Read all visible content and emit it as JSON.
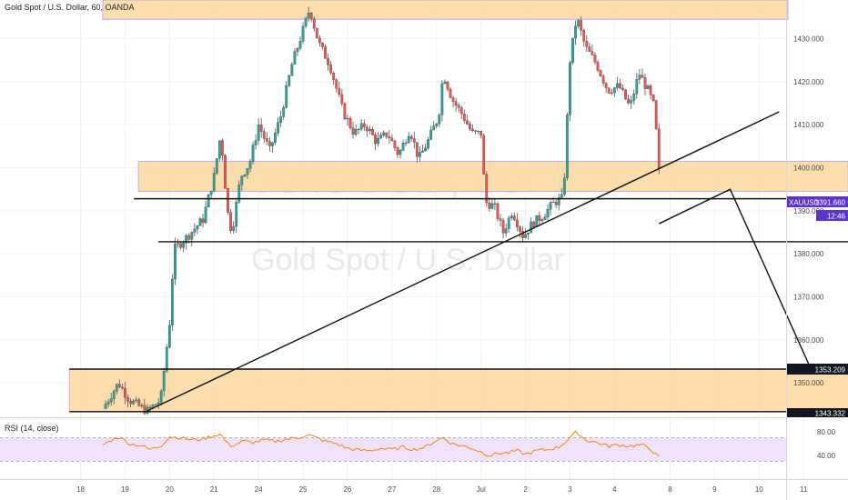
{
  "header": {
    "title": "Gold Spot / U.S. Dollar, 60, OANDA"
  },
  "watermark": {
    "symbol": "XAUUSD, 60",
    "name": "Gold Spot / U.S. Dollar"
  },
  "rsi": {
    "label": "RSI (14, close)",
    "ticks": [
      "80.00",
      "40.00"
    ],
    "upper": 70,
    "lower": 30
  },
  "price_labels": {
    "last": {
      "symbol": "XAUUSD",
      "value": "1391.660",
      "time": "12:46"
    },
    "support": "1353.209",
    "bottom": "1343.332"
  },
  "chart_data": {
    "type": "candlestick",
    "ylim": [
      1342,
      1439
    ],
    "yticks": [
      "1430.000",
      "1420.000",
      "1410.000",
      "1400.000",
      "1390.000",
      "1380.000",
      "1370.000",
      "1360.000",
      "1350.000"
    ],
    "yticks_values": [
      1430,
      1420,
      1410,
      1400,
      1390,
      1380,
      1370,
      1360,
      1350
    ],
    "xticks": [
      "18",
      "19",
      "20",
      "21",
      "24",
      "25",
      "26",
      "27",
      "28",
      "Jul",
      "2",
      "3",
      "4",
      "8",
      "9",
      "10",
      "11"
    ],
    "xticks_index": [
      -1,
      1,
      3,
      5,
      7,
      9,
      11,
      13,
      15,
      17,
      19,
      21,
      23,
      25.5,
      27.5,
      29.5,
      31.5
    ],
    "price_path": [
      [
        0,
        1344
      ],
      [
        0.7,
        1350
      ],
      [
        1.2,
        1346
      ],
      [
        1.8,
        1344
      ],
      [
        2.0,
        1343.5
      ],
      [
        2.6,
        1346
      ],
      [
        3.0,
        1364
      ],
      [
        3.2,
        1381
      ],
      [
        3.8,
        1384
      ],
      [
        4.5,
        1388
      ],
      [
        5.0,
        1398
      ],
      [
        5.3,
        1408
      ],
      [
        5.6,
        1390
      ],
      [
        5.8,
        1385
      ],
      [
        6.2,
        1398
      ],
      [
        6.6,
        1401
      ],
      [
        7.0,
        1410
      ],
      [
        7.5,
        1404
      ],
      [
        8.0,
        1412
      ],
      [
        8.5,
        1424
      ],
      [
        9.0,
        1432
      ],
      [
        9.3,
        1437
      ],
      [
        9.7,
        1429
      ],
      [
        10.2,
        1424
      ],
      [
        10.8,
        1413
      ],
      [
        11.3,
        1408
      ],
      [
        11.8,
        1410
      ],
      [
        12.3,
        1406
      ],
      [
        12.8,
        1408
      ],
      [
        13.3,
        1403
      ],
      [
        13.8,
        1409
      ],
      [
        14.2,
        1402
      ],
      [
        14.6,
        1406
      ],
      [
        15.1,
        1412
      ],
      [
        15.3,
        1422
      ],
      [
        15.7,
        1416
      ],
      [
        16.2,
        1412
      ],
      [
        16.6,
        1408
      ],
      [
        17.0,
        1408
      ],
      [
        17.2,
        1392
      ],
      [
        17.6,
        1391
      ],
      [
        18.0,
        1385
      ],
      [
        18.4,
        1390
      ],
      [
        18.9,
        1384
      ],
      [
        19.3,
        1387
      ],
      [
        19.8,
        1389
      ],
      [
        20.3,
        1392
      ],
      [
        20.7,
        1393
      ],
      [
        21.0,
        1425
      ],
      [
        21.3,
        1435
      ],
      [
        21.7,
        1428
      ],
      [
        22.2,
        1424
      ],
      [
        22.7,
        1418
      ],
      [
        23.2,
        1419
      ],
      [
        23.7,
        1414
      ],
      [
        24.1,
        1422
      ],
      [
        24.5,
        1418
      ],
      [
        24.8,
        1414
      ],
      [
        25.0,
        1399
      ],
      [
        25.1,
        1388
      ]
    ],
    "rsi_path": [
      [
        0,
        58
      ],
      [
        0.7,
        72
      ],
      [
        1.2,
        60
      ],
      [
        1.8,
        56
      ],
      [
        2.1,
        50
      ],
      [
        2.6,
        56
      ],
      [
        3.0,
        72
      ],
      [
        3.5,
        70
      ],
      [
        4.0,
        66
      ],
      [
        4.5,
        68
      ],
      [
        5.0,
        74
      ],
      [
        5.3,
        76
      ],
      [
        5.6,
        60
      ],
      [
        5.8,
        56
      ],
      [
        6.3,
        64
      ],
      [
        6.8,
        62
      ],
      [
        7.2,
        66
      ],
      [
        7.8,
        64
      ],
      [
        8.3,
        68
      ],
      [
        8.8,
        70
      ],
      [
        9.2,
        75
      ],
      [
        9.6,
        70
      ],
      [
        10.0,
        64
      ],
      [
        10.5,
        60
      ],
      [
        11.0,
        52
      ],
      [
        11.5,
        49
      ],
      [
        12.0,
        48
      ],
      [
        12.5,
        52
      ],
      [
        13.0,
        50
      ],
      [
        13.5,
        54
      ],
      [
        14.0,
        50
      ],
      [
        14.5,
        54
      ],
      [
        15.0,
        66
      ],
      [
        15.3,
        70
      ],
      [
        15.7,
        60
      ],
      [
        16.2,
        56
      ],
      [
        16.6,
        52
      ],
      [
        17.0,
        46
      ],
      [
        17.4,
        40
      ],
      [
        17.8,
        44
      ],
      [
        18.2,
        44
      ],
      [
        18.6,
        48
      ],
      [
        19.0,
        42
      ],
      [
        19.5,
        48
      ],
      [
        20.0,
        50
      ],
      [
        20.5,
        54
      ],
      [
        21.0,
        70
      ],
      [
        21.3,
        80
      ],
      [
        21.7,
        66
      ],
      [
        22.2,
        62
      ],
      [
        22.7,
        56
      ],
      [
        23.2,
        58
      ],
      [
        23.7,
        56
      ],
      [
        24.2,
        58
      ],
      [
        24.6,
        52
      ],
      [
        25.0,
        36
      ],
      [
        25.1,
        30
      ]
    ],
    "zones": [
      {
        "name": "top-resistance-zone",
        "x0": 0,
        "x1": 30.8,
        "y0": 1434.5,
        "y1": 1439
      },
      {
        "name": "mid-resistance-zone",
        "x0": 1.6,
        "x1": 33.5,
        "y0": 1394.5,
        "y1": 1401.5
      },
      {
        "name": "bottom-support-zone",
        "x0": -1.5,
        "x1": 33.8,
        "y0": 1343.3,
        "y1": 1353.2
      }
    ],
    "lines": [
      {
        "name": "trendline",
        "x0": 2.0,
        "y0": 1343.5,
        "x1": 30.4,
        "y1": 1413
      },
      {
        "name": "upper-horizontal-level",
        "x0": 1.4,
        "x1": 33.9,
        "y": 1392.8
      },
      {
        "name": "lower-horizontal-level",
        "x0": 2.5,
        "x1": 33.9,
        "y": 1382.8
      },
      {
        "name": "support-level",
        "x0": -1.5,
        "x1": 33.9,
        "y": 1353.2
      },
      {
        "name": "bottom-level",
        "x0": -1.5,
        "x1": 33.9,
        "y": 1343.3
      }
    ],
    "projection": [
      [
        25.0,
        1387
      ],
      [
        28.2,
        1395
      ],
      [
        31.9,
        1352.4
      ]
    ]
  },
  "colors": {
    "up": "#26a69a",
    "down": "#ef5350",
    "candle_line": "#555555",
    "zone_fill": "#fcdcaa",
    "zone_stroke": "#b9a7ee",
    "line": "#111111",
    "rsi_line": "#f57c00",
    "rsi_band": "#efe3fb",
    "last_price_bg": "#5b35c9",
    "black_label_bg": "#131722",
    "grid": "#f2f2f2"
  }
}
